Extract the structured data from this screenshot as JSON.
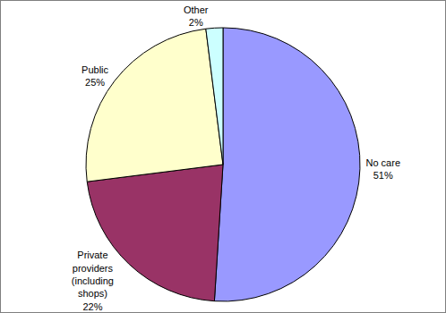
{
  "chart_data": {
    "type": "pie",
    "categories": [
      "No care",
      "Private providers (including shops)",
      "Public",
      "Other"
    ],
    "values": [
      51,
      22,
      25,
      2
    ],
    "value_labels": [
      "51%",
      "22%",
      "25%",
      "2%"
    ],
    "colors": [
      "#9999ff",
      "#993366",
      "#ffffcc",
      "#ccffff"
    ],
    "data_labels": true
  }
}
